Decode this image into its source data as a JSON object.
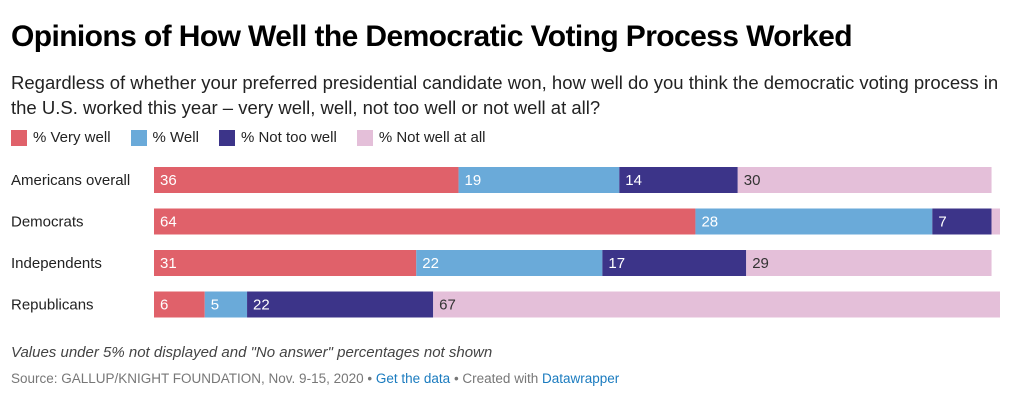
{
  "title": "Opinions of How Well the Democratic Voting Process Worked",
  "subtitle": "Regardless of whether your preferred presidential candidate won, how well do you think the democratic voting process in the U.S. worked this year – very well, well, not too well or not well at all?",
  "colors": {
    "very_well": "#e0616a",
    "well": "#6aaad9",
    "not_too_well": "#3c3489",
    "not_well_at_all": "#e4bfd9"
  },
  "chart_data": {
    "type": "bar",
    "stacked": true,
    "orientation": "horizontal",
    "categories": [
      "Americans overall",
      "Democrats",
      "Independents",
      "Republicans"
    ],
    "series": [
      {
        "name": "% Very well",
        "values": [
          36,
          64,
          31,
          6
        ]
      },
      {
        "name": "% Well",
        "values": [
          19,
          28,
          22,
          5
        ]
      },
      {
        "name": "% Not too well",
        "values": [
          14,
          7,
          17,
          22
        ]
      },
      {
        "name": "% Not well at all",
        "values": [
          30,
          1,
          29,
          67
        ]
      }
    ],
    "legend_position": "top-left",
    "xlim": [
      0,
      100
    ]
  },
  "note": "Values under 5% not displayed and \"No answer\" percentages not shown",
  "source": {
    "prefix": "Source: GALLUP/KNIGHT FOUNDATION, Nov. 9-15, 2020 •",
    "get_data": "Get the data",
    "created": "• Created with",
    "tool": "Datawrapper"
  }
}
